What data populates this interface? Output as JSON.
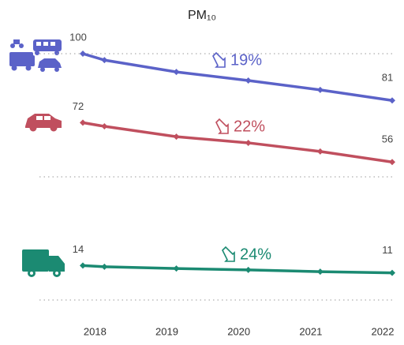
{
  "chart_data": {
    "type": "line",
    "title": "PM₁₀",
    "x": [
      2017.7,
      2018,
      2019,
      2020,
      2021,
      2022
    ],
    "xlim": [
      2017.7,
      2022
    ],
    "xticks": [
      2018,
      2019,
      2020,
      2021,
      2022
    ],
    "ylim": [
      0,
      100
    ],
    "yticks": [
      0,
      50,
      100
    ],
    "grid": true,
    "series": [
      {
        "color": "#5b62c8",
        "values": [
          100,
          97.4,
          92.6,
          89.1,
          85.3,
          81
        ]
      },
      {
        "color": "#c04f5e",
        "values": [
          72,
          70.5,
          66.3,
          63.8,
          60.3,
          56
        ]
      },
      {
        "color": "#1b8a72",
        "values": [
          14,
          13.5,
          12.8,
          12.2,
          11.5,
          11
        ]
      }
    ],
    "annotations": [
      "19%",
      "22%",
      "24%"
    ]
  }
}
